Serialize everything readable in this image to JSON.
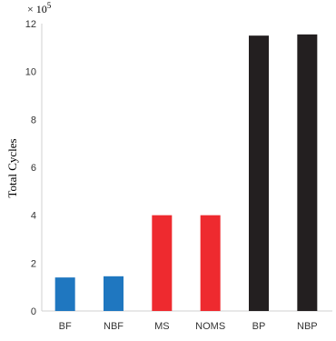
{
  "chart_data": {
    "type": "bar",
    "categories": [
      "BF",
      "NBF",
      "MS",
      "NOMS",
      "BP",
      "NBP"
    ],
    "values": [
      1.4,
      1.45,
      4.0,
      4.0,
      11.5,
      11.55
    ],
    "colors": [
      "#1f77c0",
      "#1f77c0",
      "#ee2a2f",
      "#ee2a2f",
      "#231f20",
      "#231f20"
    ],
    "ylabel": "Total Cycles",
    "y_multiplier": "× 10",
    "y_multiplier_exp": "5",
    "ylim": [
      0,
      12
    ],
    "yticks": [
      0,
      2,
      4,
      6,
      8,
      10,
      12
    ],
    "grid": false,
    "legend": "none"
  }
}
